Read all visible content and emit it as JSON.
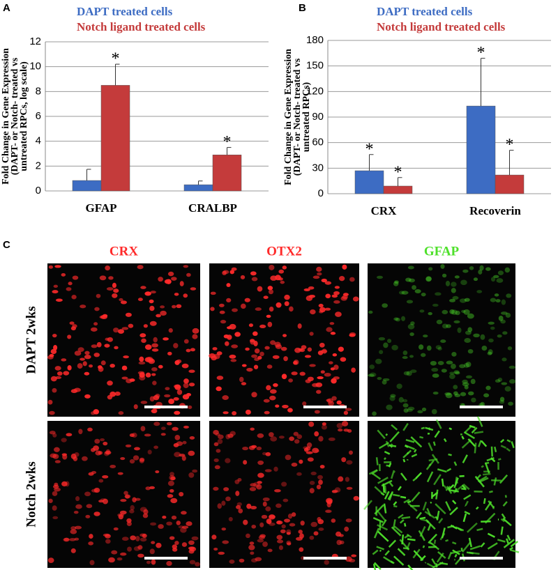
{
  "panels": {
    "a": "A",
    "b": "B",
    "c": "C"
  },
  "chart_data": [
    {
      "type": "bar",
      "ylabel": [
        "Fold Change in Gene Expression",
        "(DAPT- or Notch- treated vs",
        "untreated RPCs, log scale)"
      ],
      "categories": [
        "GFAP",
        "CRALBP"
      ],
      "series": [
        {
          "name": "DAPT treated cells",
          "color": "#3d6cc3",
          "values": [
            0.84,
            0.5
          ],
          "errors": [
            0.9,
            0.3
          ],
          "significance": [
            null,
            null
          ]
        },
        {
          "name": "Notch ligand treated cells",
          "color": "#c43b3b",
          "values": [
            8.5,
            2.9
          ],
          "errors": [
            1.7,
            0.6
          ],
          "significance": [
            "*",
            "*"
          ]
        }
      ],
      "ylim": [
        0,
        12
      ],
      "yticks": [
        0,
        2,
        4,
        6,
        8,
        10,
        12
      ],
      "grid": true
    },
    {
      "type": "bar",
      "ylabel": [
        "Fold Change in Gene Expression",
        "(DAPT- or Notch- treated vs",
        "untreated RPCs)"
      ],
      "categories": [
        "CRX",
        "Recoverin"
      ],
      "series": [
        {
          "name": "DAPT treated cells",
          "color": "#3d6cc3",
          "values": [
            27,
            103
          ],
          "errors": [
            19,
            56
          ],
          "significance": [
            "*",
            "*"
          ]
        },
        {
          "name": "Notch ligand treated cells",
          "color": "#c43b3b",
          "values": [
            9,
            22
          ],
          "errors": [
            10,
            29
          ],
          "significance": [
            "*",
            "*"
          ]
        }
      ],
      "ylim": [
        0,
        180
      ],
      "yticks": [
        0,
        30,
        60,
        90,
        120,
        150,
        180
      ],
      "grid": true
    }
  ],
  "micrographs": {
    "columns": [
      {
        "label": "CRX",
        "color": "#ff2a2a"
      },
      {
        "label": "OTX2",
        "color": "#ff2a2a"
      },
      {
        "label": "GFAP",
        "color": "#4ee02a"
      }
    ],
    "rows": [
      "DAPT 2wks",
      "Notch 2wks"
    ]
  }
}
